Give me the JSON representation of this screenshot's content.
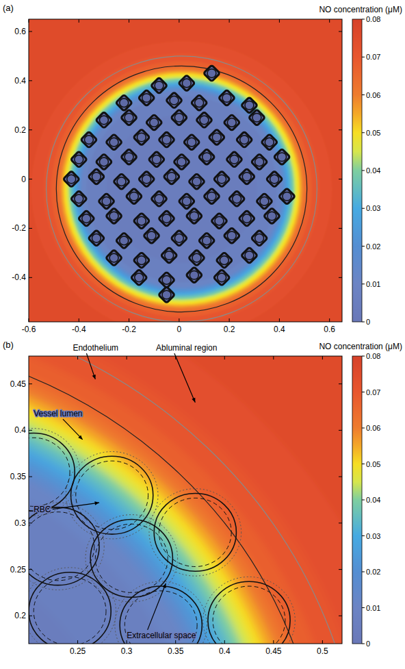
{
  "chart_data": [
    {
      "type": "heatmap",
      "panel_label": "(a)",
      "xlim": [
        -0.6,
        0.65
      ],
      "ylim": [
        -0.58,
        0.65
      ],
      "xticks": [
        -0.6,
        -0.4,
        -0.2,
        0,
        0.2,
        0.4,
        0.6
      ],
      "yticks": [
        -0.4,
        -0.2,
        0,
        0.2,
        0.4,
        0.6
      ],
      "colorbar": {
        "title": "NO concentration (μM)",
        "range": [
          0,
          0.08
        ],
        "ticks": [
          0,
          0.01,
          0.02,
          0.03,
          0.04,
          0.05,
          0.06,
          0.07,
          0.08
        ]
      },
      "center": {
        "x": 0.01,
        "y": -0.04
      },
      "profile": {
        "r": [
          1.0,
          0.6,
          0.55,
          0.52,
          0.5,
          0.49,
          0.48,
          0.47,
          0.46,
          0.45,
          0.44,
          0.43,
          0.42,
          0.41,
          0.4,
          0.38,
          0.3
        ],
        "values": [
          0.075,
          0.073,
          0.071,
          0.068,
          0.064,
          0.06,
          0.055,
          0.05,
          0.045,
          0.04,
          0.034,
          0.028,
          0.022,
          0.016,
          0.011,
          0.007,
          0.004
        ]
      },
      "wall_radii": [
        0.5,
        0.54
      ],
      "rbcs": {
        "radius": 0.032,
        "x": [
          0.13,
          0.03,
          -0.08,
          -0.22,
          -0.13,
          -0.02,
          0.08,
          0.19,
          0.28,
          -0.3,
          -0.2,
          -0.1,
          0.0,
          0.1,
          0.21,
          0.31,
          -0.36,
          -0.26,
          -0.15,
          -0.05,
          0.05,
          0.15,
          0.26,
          0.36,
          -0.4,
          -0.3,
          -0.2,
          -0.09,
          0.01,
          0.11,
          0.22,
          0.32,
          0.41,
          -0.43,
          -0.33,
          -0.23,
          -0.13,
          -0.03,
          0.07,
          0.17,
          0.27,
          0.38,
          -0.4,
          -0.29,
          -0.18,
          -0.08,
          0.03,
          0.13,
          0.23,
          0.34,
          0.43,
          -0.37,
          -0.26,
          -0.15,
          -0.05,
          0.06,
          0.16,
          0.27,
          0.37,
          -0.33,
          -0.22,
          -0.11,
          0.0,
          0.11,
          0.21,
          0.32,
          -0.26,
          -0.15,
          -0.04,
          0.07,
          0.18,
          0.28,
          -0.16,
          -0.05,
          0.06,
          0.17,
          -0.05
        ],
        "y": [
          0.43,
          0.39,
          0.38,
          0.31,
          0.33,
          0.32,
          0.31,
          0.33,
          0.3,
          0.24,
          0.25,
          0.23,
          0.25,
          0.24,
          0.23,
          0.25,
          0.16,
          0.15,
          0.17,
          0.16,
          0.15,
          0.17,
          0.16,
          0.15,
          0.08,
          0.07,
          0.09,
          0.08,
          0.07,
          0.09,
          0.08,
          0.07,
          0.09,
          0.0,
          0.01,
          -0.01,
          0.0,
          0.01,
          -0.01,
          0.0,
          0.01,
          0.0,
          -0.08,
          -0.09,
          -0.07,
          -0.08,
          -0.09,
          -0.07,
          -0.08,
          -0.09,
          -0.07,
          -0.16,
          -0.15,
          -0.17,
          -0.16,
          -0.15,
          -0.17,
          -0.16,
          -0.15,
          -0.24,
          -0.25,
          -0.23,
          -0.24,
          -0.25,
          -0.23,
          -0.24,
          -0.32,
          -0.33,
          -0.31,
          -0.32,
          -0.33,
          -0.31,
          -0.4,
          -0.41,
          -0.39,
          -0.4,
          -0.47
        ]
      }
    },
    {
      "type": "heatmap",
      "panel_label": "(b)",
      "xlim": [
        0.2,
        0.52
      ],
      "ylim": [
        0.17,
        0.48
      ],
      "xticks": [
        0.25,
        0.3,
        0.35,
        0.4,
        0.45,
        0.5
      ],
      "yticks": [
        0.2,
        0.25,
        0.3,
        0.35,
        0.4,
        0.45
      ],
      "colorbar": {
        "title": "NO concentration (μM)",
        "range": [
          0,
          0.08
        ],
        "ticks": [
          0,
          0.01,
          0.02,
          0.03,
          0.04,
          0.05,
          0.06,
          0.07,
          0.08
        ]
      },
      "center": {
        "x": 0,
        "y": 0
      },
      "profile": {
        "r": [
          1.0,
          0.6,
          0.55,
          0.52,
          0.5,
          0.49,
          0.48,
          0.47,
          0.46,
          0.45,
          0.44,
          0.43,
          0.42,
          0.41,
          0.4,
          0.38,
          0.3
        ],
        "values": [
          0.075,
          0.073,
          0.071,
          0.068,
          0.064,
          0.06,
          0.055,
          0.05,
          0.045,
          0.04,
          0.034,
          0.028,
          0.022,
          0.016,
          0.011,
          0.007,
          0.004
        ]
      },
      "wall_radii": [
        0.5,
        0.54
      ],
      "rbcs": {
        "radius": 0.042,
        "x": [
          0.285,
          0.37,
          0.305,
          0.23,
          0.242,
          0.335,
          0.425,
          0.205
        ],
        "y": [
          0.33,
          0.29,
          0.262,
          0.275,
          0.205,
          0.19,
          0.195,
          0.355
        ]
      },
      "annotations": [
        "Endothelium",
        "Abluminal region",
        "Vessel lumen",
        "RBC",
        "Extracellular space"
      ]
    }
  ]
}
